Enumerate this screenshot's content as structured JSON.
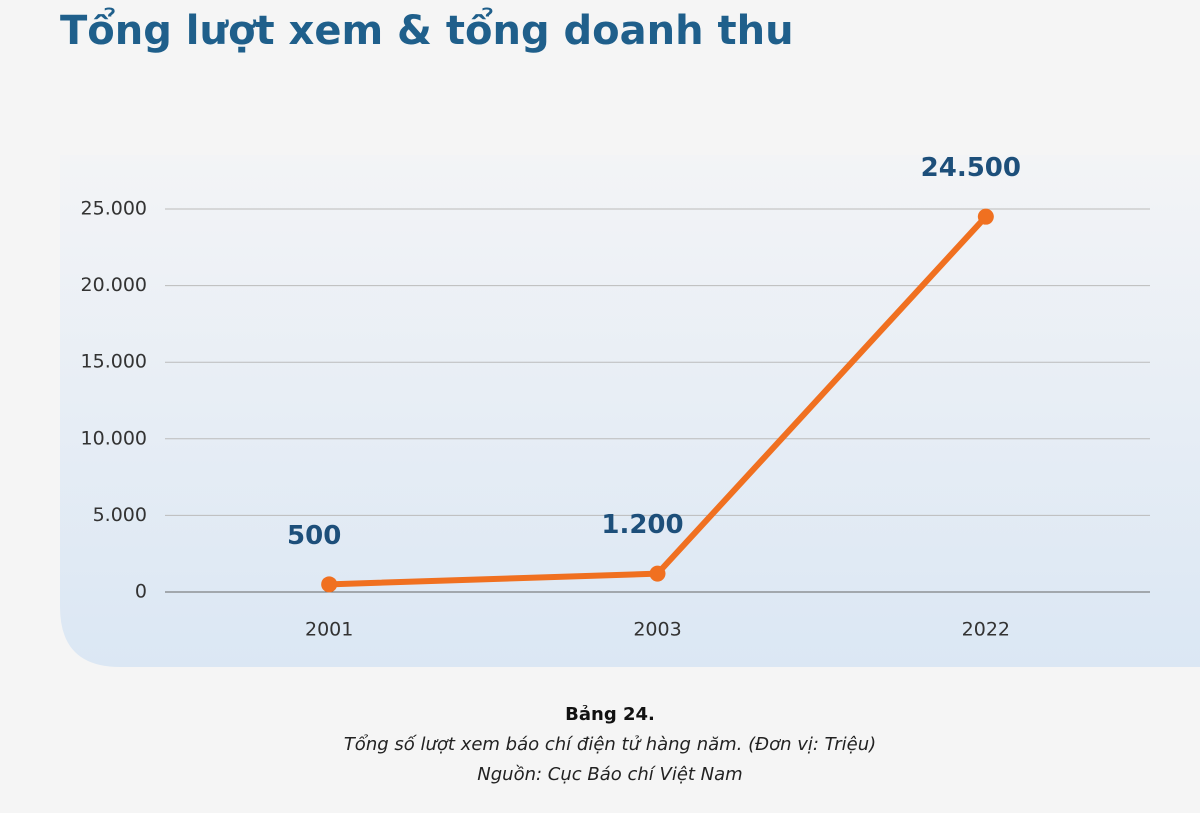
{
  "chart_data": {
    "type": "line",
    "title": "Tổng lượt xem & tổng doanh thu",
    "caption_title": "Bảng 24.",
    "caption": "Tổng số lượt xem báo chí điện tử hàng năm. (Đơn vị: Triệu)",
    "source": "Nguồn: Cục Báo chí Việt Nam",
    "categories": [
      "2001",
      "2003",
      "2022"
    ],
    "values": [
      500,
      1200,
      24500
    ],
    "value_labels": [
      "500",
      "1.200",
      "24.500"
    ],
    "color": "#f07020",
    "ylim": [
      0,
      25000
    ],
    "yticks": [
      0,
      {
        "value": 5000,
        "label": "5.000"
      },
      {
        "value": 10000,
        "label": "10.000"
      },
      {
        "value": 15000,
        "label": "15.000"
      },
      {
        "value": 20000,
        "label": "20.000"
      },
      {
        "value": 25000,
        "label": "25.000"
      }
    ],
    "grid": true
  }
}
